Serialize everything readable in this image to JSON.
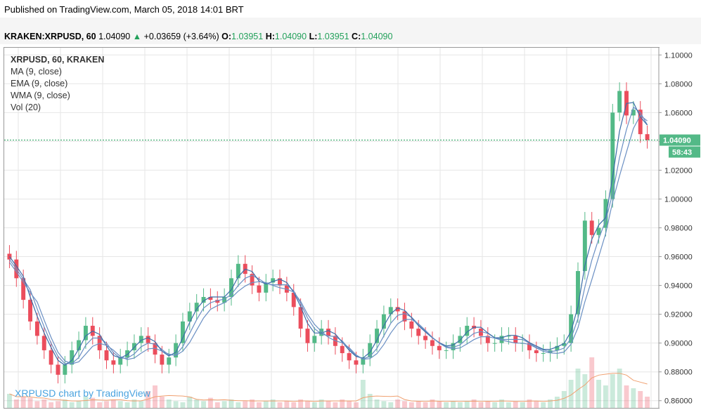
{
  "header": {
    "published": "Published on TradingView.com, March 05, 2018 14:01 BRT",
    "symbol": "KRAKEN:XRPUSD, 60",
    "last": "1.04090",
    "arrow": "▲",
    "change": "+0.03659 (+3.64%)",
    "o_label": "O:",
    "o_value": "1.03951",
    "h_label": "H:",
    "h_value": "1.04090",
    "l_label": "L:",
    "l_value": "1.03951",
    "c_label": "C:",
    "c_value": "1.04090"
  },
  "legend": {
    "symbol": "XRPUSD, 60, KRAKEN",
    "ma": "MA (9, close)",
    "ema": "EMA (9, close)",
    "wma": "WMA (9, close)",
    "vol": "Vol (20)"
  },
  "watermark": "XRPUSD chart by TradingView",
  "price_label": "1.04090",
  "timer_label": "58:43",
  "colors": {
    "up": "#53b987",
    "down": "#eb4d5c",
    "ma": "#6a8fc3",
    "line2": "#3c6ea8",
    "grid": "#e6e6e6",
    "vol_ma": "#f0a070"
  },
  "chart_data": {
    "type": "candlestick",
    "y_axis_ticks": [
      "1.10000",
      "1.08000",
      "1.06000",
      "1.04000",
      "1.02000",
      "1.00000",
      "0.98000",
      "0.96000",
      "0.94000",
      "0.92000",
      "0.90000",
      "0.88000",
      "0.86000"
    ],
    "ylim": [
      0.855,
      1.105
    ],
    "last_price": 1.0409,
    "close_trace": [
      0.958,
      0.945,
      0.93,
      0.915,
      0.905,
      0.895,
      0.885,
      0.878,
      0.885,
      0.895,
      0.902,
      0.912,
      0.905,
      0.895,
      0.888,
      0.885,
      0.89,
      0.895,
      0.9,
      0.905,
      0.9,
      0.892,
      0.885,
      0.89,
      0.9,
      0.915,
      0.922,
      0.928,
      0.932,
      0.93,
      0.928,
      0.932,
      0.945,
      0.955,
      0.948,
      0.94,
      0.935,
      0.942,
      0.945,
      0.94,
      0.935,
      0.925,
      0.91,
      0.9,
      0.905,
      0.91,
      0.905,
      0.898,
      0.893,
      0.888,
      0.885,
      0.89,
      0.9,
      0.91,
      0.92,
      0.925,
      0.922,
      0.915,
      0.91,
      0.905,
      0.902,
      0.898,
      0.895,
      0.895,
      0.9,
      0.905,
      0.912,
      0.91,
      0.905,
      0.9,
      0.9,
      0.905,
      0.905,
      0.9,
      0.9,
      0.895,
      0.893,
      0.893,
      0.895,
      0.898,
      0.9,
      0.92,
      0.95,
      0.985,
      0.975,
      0.98,
      1.0,
      1.06,
      1.075,
      1.058,
      1.062,
      1.045,
      1.041
    ],
    "volume_trace": [
      0.25,
      0.15,
      0.2,
      0.18,
      0.12,
      0.15,
      0.1,
      0.12,
      0.15,
      0.1,
      0.12,
      0.2,
      0.18,
      0.1,
      0.12,
      0.15,
      0.12,
      0.1,
      0.15,
      0.12,
      0.3,
      0.4,
      0.2,
      0.15,
      0.12,
      0.1,
      0.2,
      0.15,
      0.12,
      0.18,
      0.1,
      0.12,
      0.15,
      0.1,
      0.12,
      0.15,
      0.1,
      0.12,
      0.15,
      0.1,
      0.12,
      0.1,
      0.15,
      0.12,
      0.1,
      0.15,
      0.12,
      0.1,
      0.15,
      0.12,
      0.1,
      0.5,
      0.25,
      0.15,
      0.12,
      0.1,
      0.15,
      0.12,
      0.1,
      0.12,
      0.1,
      0.15,
      0.12,
      0.1,
      0.12,
      0.1,
      0.12,
      0.15,
      0.1,
      0.12,
      0.1,
      0.15,
      0.1,
      0.12,
      0.1,
      0.15,
      0.12,
      0.1,
      0.15,
      0.2,
      0.3,
      0.5,
      0.7,
      0.6,
      0.9,
      0.5,
      0.4,
      0.6,
      0.7,
      0.4,
      0.35,
      0.3,
      0.2
    ]
  }
}
